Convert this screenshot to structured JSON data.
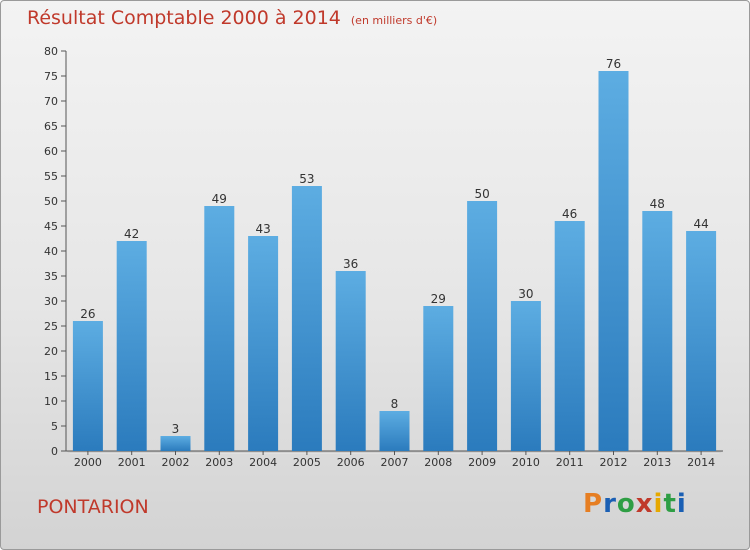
{
  "header": {
    "title": "Résultat Comptable 2000 à 2014",
    "subtitle": "(en milliers d'€)"
  },
  "footer": {
    "commune": "PONTARION",
    "logo": "Proxiti"
  },
  "colors": {
    "title": "#c0392b",
    "bar_light": "#5dade2",
    "bar_dark": "#2b7bbd",
    "logo_letters": [
      "#e67e22",
      "#1a5fb4",
      "#2e9e44",
      "#c0392b",
      "#e6a800",
      "#2e9e44",
      "#1a5fb4"
    ]
  },
  "chart_data": {
    "type": "bar",
    "title": "Résultat Comptable 2000 à 2014",
    "subtitle": "(en milliers d'€)",
    "xlabel": "",
    "ylabel": "",
    "categories": [
      "2000",
      "2001",
      "2002",
      "2003",
      "2004",
      "2005",
      "2006",
      "2007",
      "2008",
      "2009",
      "2010",
      "2011",
      "2012",
      "2013",
      "2014"
    ],
    "values": [
      26,
      42,
      3,
      49,
      43,
      53,
      36,
      8,
      29,
      50,
      30,
      46,
      76,
      48,
      44
    ],
    "ylim": [
      0,
      80
    ],
    "yticks": [
      0,
      5,
      10,
      15,
      20,
      25,
      30,
      35,
      40,
      45,
      50,
      55,
      60,
      65,
      70,
      75,
      80
    ],
    "grid": false,
    "data_labels": true
  }
}
